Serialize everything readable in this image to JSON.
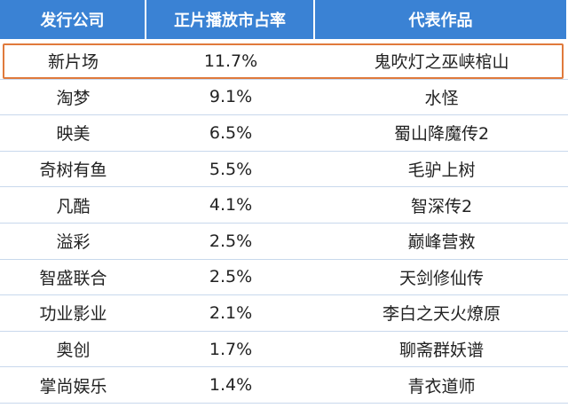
{
  "table": {
    "header": [
      "发行公司",
      "正片播放市占率",
      "代表作品"
    ],
    "rows": [
      [
        "新片场",
        "11.7%",
        "鬼吹灯之巫峡棺山"
      ],
      [
        "淘梦",
        "9.1%",
        "水怪"
      ],
      [
        "映美",
        "6.5%",
        "蜀山降魔传2"
      ],
      [
        "奇树有鱼",
        "5.5%",
        "毛驴上树"
      ],
      [
        "凡酷",
        "4.1%",
        "智深传2"
      ],
      [
        "溢彩",
        "2.5%",
        "巅峰营救"
      ],
      [
        "智盛联合",
        "2.5%",
        "天剑修仙传"
      ],
      [
        "功业影业",
        "2.1%",
        "李白之天火燎原"
      ],
      [
        "奥创",
        "1.7%",
        "聊斋群妖谱"
      ],
      [
        "掌尚娱乐",
        "1.4%",
        "青衣道师"
      ]
    ]
  }
}
